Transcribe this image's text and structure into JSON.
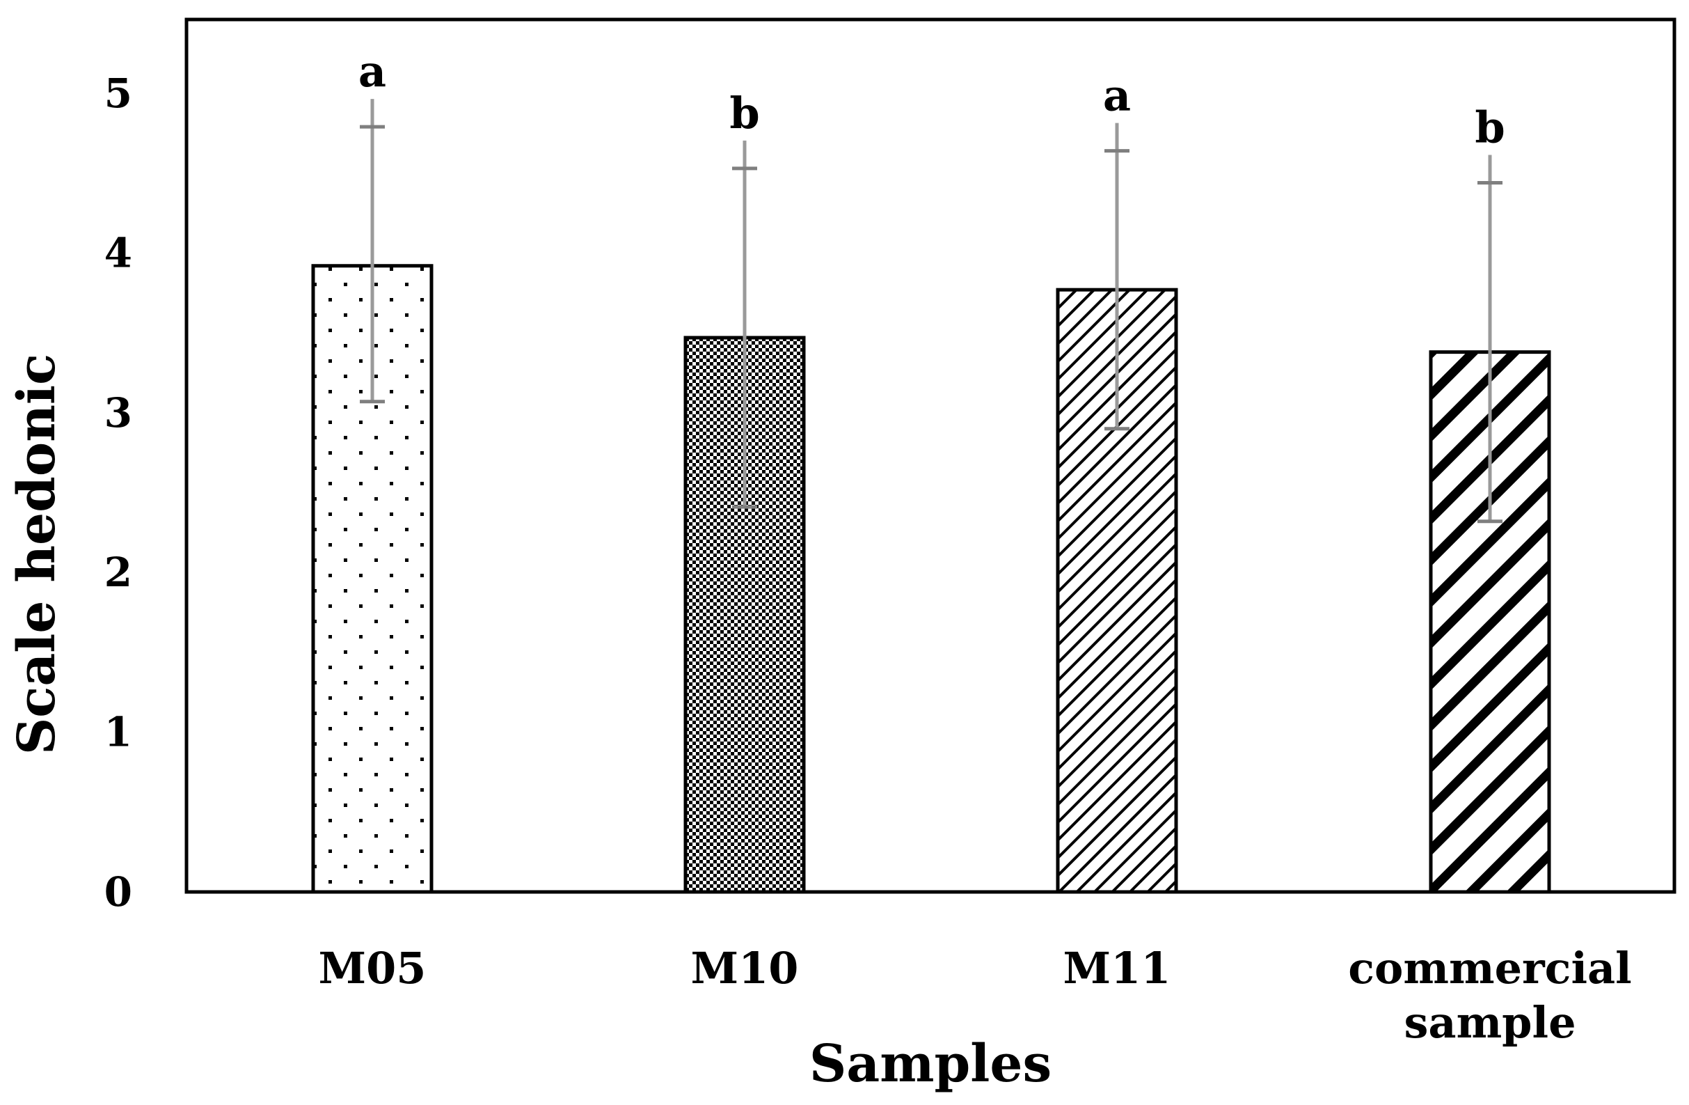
{
  "chart_data": {
    "type": "bar",
    "title": "",
    "xlabel": "Samples",
    "ylabel": "Scale  hedonic",
    "ylim": [
      0,
      5.5
    ],
    "yticks": [
      "0",
      "1",
      "2",
      "3",
      "4",
      "5"
    ],
    "categories": [
      [
        "M05"
      ],
      [
        "M10"
      ],
      [
        "M11"
      ],
      [
        "commercial",
        "sample"
      ]
    ],
    "values": [
      3.92,
      3.47,
      3.77,
      3.38
    ],
    "error_upper": [
      0.87,
      1.06,
      0.87,
      1.06
    ],
    "error_lower": [
      0.85,
      1.06,
      0.87,
      1.06
    ],
    "significance_letters": [
      "a",
      "b",
      "a",
      "b"
    ],
    "patterns": [
      "sparse-dots",
      "dense-checker",
      "fine-diagonal-hatch",
      "wide-diagonal-stripes"
    ],
    "grid": false,
    "legend": "none"
  },
  "colors": {
    "bar_outline": "#000000",
    "bar_fill": "#ffffff",
    "pattern_ink": "#000000",
    "error_bar": "#7f7f7f",
    "axis": "#000000"
  }
}
